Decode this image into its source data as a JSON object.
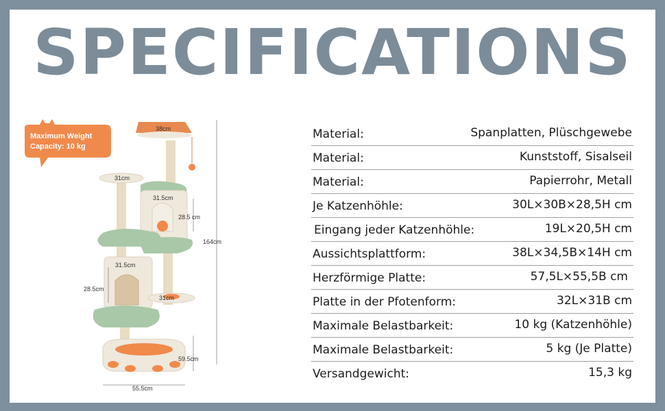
{
  "title": "SPECIFICATIONS",
  "badge": {
    "line1": "Maximum Weight",
    "line2": "Capacity: 10 kg"
  },
  "dimensions": {
    "top_platform": "38cm",
    "left_platform": "31cm",
    "upper_condo_width": "31.5cm",
    "upper_condo_height": "28.5 cm",
    "total_height": "164cm",
    "lower_condo_width": "31.5cm",
    "lower_condo_height": "28.5cm",
    "mid_platform": "31cm",
    "base_height": "59.5cm",
    "base_width": "55.5cm"
  },
  "specs": [
    {
      "label": "Material:",
      "value": "Spanplatten, Plüschgewebe"
    },
    {
      "label": "Material:",
      "value": "Kunststoff, Sisalseil"
    },
    {
      "label": "Material:",
      "value": "Papierrohr, Metall"
    },
    {
      "label": "Je Katzenhöhle:",
      "value": "30L×30B×28,5H cm"
    },
    {
      "label": "Eingang jeder Katzenhöhle:",
      "value": "19L×20,5H cm"
    },
    {
      "label": "Aussichtsplattform:",
      "value": "38L×34,5B×14H cm"
    },
    {
      "label": "Herzförmige Platte:",
      "value": "57,5L×55,5B cm"
    },
    {
      "label": "Platte in der Pfotenform:",
      "value": "32L×31B cm"
    },
    {
      "label": "Maximale Belastbarkeit:",
      "value": "10 kg (Katzenhöhle)"
    },
    {
      "label": "Maximale Belastbarkeit:",
      "value": "5 kg (Je Platte)"
    },
    {
      "label": "Versandgewicht:",
      "value": "15,3 kg"
    }
  ],
  "colors": {
    "frame": "#7e8f9d",
    "title": "#7c8c99",
    "accent_orange": "#f08a4b",
    "sage": "#a9c8a8",
    "cream": "#efe8dc"
  }
}
